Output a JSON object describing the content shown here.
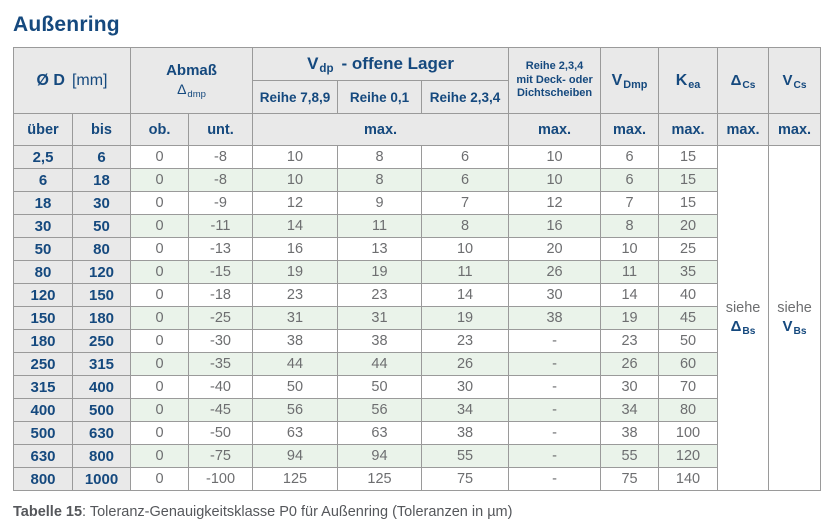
{
  "title": "Außenring",
  "header": {
    "d_label": "Ø D",
    "d_unit": "[mm]",
    "abmass_label": "Abmaß",
    "abmass_sym": "Δ",
    "abmass_sub": "dmp",
    "vdp_sym": "V",
    "vdp_sub": "dp",
    "vdp_rest": "-  offene Lager",
    "reihe_789": "Reihe 7,8,9",
    "reihe_01": "Reihe 0,1",
    "reihe_234": "Reihe 2,3,4",
    "deck_line1": "Reihe 2,3,4",
    "deck_line2": "mit Deck- oder",
    "deck_line3": "Dichtscheiben",
    "vdmp_sym": "V",
    "vdmp_sub": "Dmp",
    "kea_sym": "K",
    "kea_sub": "ea",
    "dcs_sym": "Δ",
    "dcs_sub": "Cs",
    "vcs_sym": "V",
    "vcs_sub": "Cs",
    "col_ueber": "über",
    "col_bis": "bis",
    "col_ob": "ob.",
    "col_unt": "unt.",
    "max_label": "max."
  },
  "see": {
    "dcs": {
      "word": "siehe",
      "sym": "Δ",
      "sub": "Bs"
    },
    "vcs": {
      "word": "siehe",
      "sym": "V",
      "sub": "Bs"
    }
  },
  "rows": [
    {
      "ueber": "2,5",
      "bis": "6",
      "ob": "0",
      "unt": "-8",
      "r789": "10",
      "r01": "8",
      "r234": "6",
      "deck": "10",
      "vdmp": "6",
      "kea": "15"
    },
    {
      "ueber": "6",
      "bis": "18",
      "ob": "0",
      "unt": "-8",
      "r789": "10",
      "r01": "8",
      "r234": "6",
      "deck": "10",
      "vdmp": "6",
      "kea": "15"
    },
    {
      "ueber": "18",
      "bis": "30",
      "ob": "0",
      "unt": "-9",
      "r789": "12",
      "r01": "9",
      "r234": "7",
      "deck": "12",
      "vdmp": "7",
      "kea": "15"
    },
    {
      "ueber": "30",
      "bis": "50",
      "ob": "0",
      "unt": "-11",
      "r789": "14",
      "r01": "11",
      "r234": "8",
      "deck": "16",
      "vdmp": "8",
      "kea": "20"
    },
    {
      "ueber": "50",
      "bis": "80",
      "ob": "0",
      "unt": "-13",
      "r789": "16",
      "r01": "13",
      "r234": "10",
      "deck": "20",
      "vdmp": "10",
      "kea": "25"
    },
    {
      "ueber": "80",
      "bis": "120",
      "ob": "0",
      "unt": "-15",
      "r789": "19",
      "r01": "19",
      "r234": "11",
      "deck": "26",
      "vdmp": "11",
      "kea": "35"
    },
    {
      "ueber": "120",
      "bis": "150",
      "ob": "0",
      "unt": "-18",
      "r789": "23",
      "r01": "23",
      "r234": "14",
      "deck": "30",
      "vdmp": "14",
      "kea": "40"
    },
    {
      "ueber": "150",
      "bis": "180",
      "ob": "0",
      "unt": "-25",
      "r789": "31",
      "r01": "31",
      "r234": "19",
      "deck": "38",
      "vdmp": "19",
      "kea": "45"
    },
    {
      "ueber": "180",
      "bis": "250",
      "ob": "0",
      "unt": "-30",
      "r789": "38",
      "r01": "38",
      "r234": "23",
      "deck": "-",
      "vdmp": "23",
      "kea": "50"
    },
    {
      "ueber": "250",
      "bis": "315",
      "ob": "0",
      "unt": "-35",
      "r789": "44",
      "r01": "44",
      "r234": "26",
      "deck": "-",
      "vdmp": "26",
      "kea": "60"
    },
    {
      "ueber": "315",
      "bis": "400",
      "ob": "0",
      "unt": "-40",
      "r789": "50",
      "r01": "50",
      "r234": "30",
      "deck": "-",
      "vdmp": "30",
      "kea": "70"
    },
    {
      "ueber": "400",
      "bis": "500",
      "ob": "0",
      "unt": "-45",
      "r789": "56",
      "r01": "56",
      "r234": "34",
      "deck": "-",
      "vdmp": "34",
      "kea": "80"
    },
    {
      "ueber": "500",
      "bis": "630",
      "ob": "0",
      "unt": "-50",
      "r789": "63",
      "r01": "63",
      "r234": "38",
      "deck": "-",
      "vdmp": "38",
      "kea": "100"
    },
    {
      "ueber": "630",
      "bis": "800",
      "ob": "0",
      "unt": "-75",
      "r789": "94",
      "r01": "94",
      "r234": "55",
      "deck": "-",
      "vdmp": "55",
      "kea": "120"
    },
    {
      "ueber": "800",
      "bis": "1000",
      "ob": "0",
      "unt": "-100",
      "r789": "125",
      "r01": "125",
      "r234": "75",
      "deck": "-",
      "vdmp": "75",
      "kea": "140"
    }
  ],
  "caption": {
    "label": "Tabelle 15",
    "text": ": Toleranz-Genauigkeitsklasse P0 für Außenring (Toleranzen in µm)"
  },
  "colors": {
    "accent_blue": "#15497e",
    "data_gray": "#6d6e70",
    "header_bg": "#e9e9e9",
    "green_row_bg": "#eaf3ea",
    "border": "#9a9a9a"
  }
}
